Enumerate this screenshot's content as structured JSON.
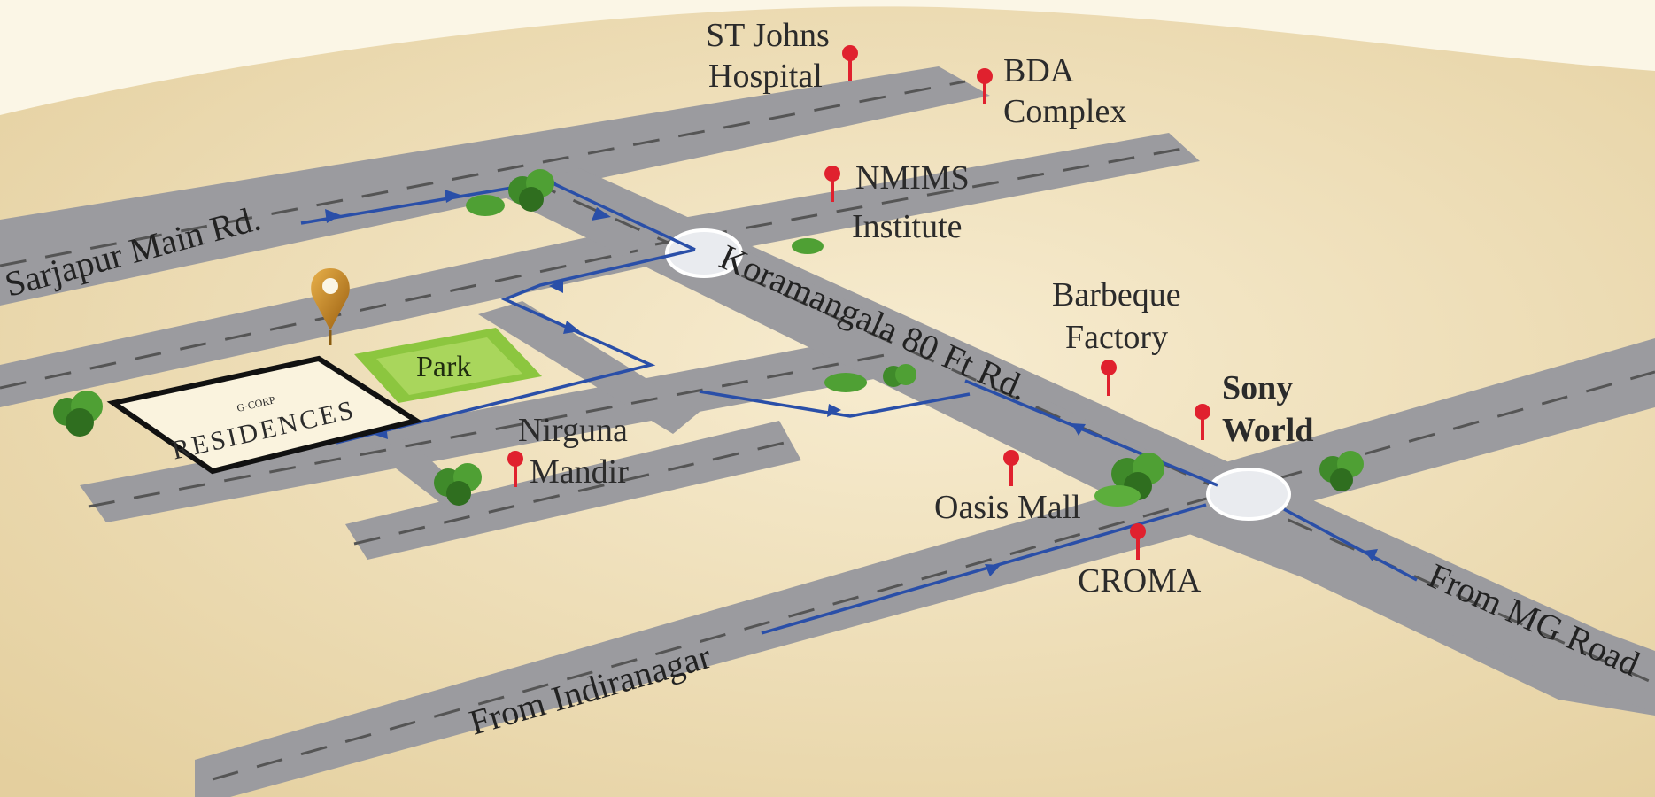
{
  "colors": {
    "background": "#fbf6e6",
    "land": "#e8d6ac",
    "road": "#9b9b9f",
    "route": "#2a4fa8",
    "pin": "#e0212e",
    "park": "#8cc63f",
    "tree": "#3f8a2a",
    "project_pin": "#c8891a"
  },
  "roads": {
    "sarjapur": "Sarjapur Main Rd.",
    "koramangala": "Koramangala 80 Ft Rd.",
    "indiranagar": "From Indiranagar",
    "mg_road": "From MG Road"
  },
  "project": {
    "brand": "G·CORP",
    "name": "RESIDENCES",
    "park": "Park"
  },
  "landmarks": {
    "st_johns_line1": "ST Johns",
    "st_johns_line2": "Hospital",
    "bda_line1": "BDA",
    "bda_line2": "Complex",
    "nmims_line1": "NMIMS",
    "nmims_line2": "Institute",
    "barbeque_line1": "Barbeque",
    "barbeque_line2": "Factory",
    "sony_line1": "Sony",
    "sony_line2": "World",
    "nirguna_line1": "Nirguna",
    "nirguna_line2": "Mandir",
    "oasis": "Oasis Mall",
    "croma": "CROMA"
  },
  "icons": [
    "map-pin-icon",
    "project-location-icon",
    "tree-icon",
    "route-arrow-icon",
    "roundabout-icon"
  ]
}
